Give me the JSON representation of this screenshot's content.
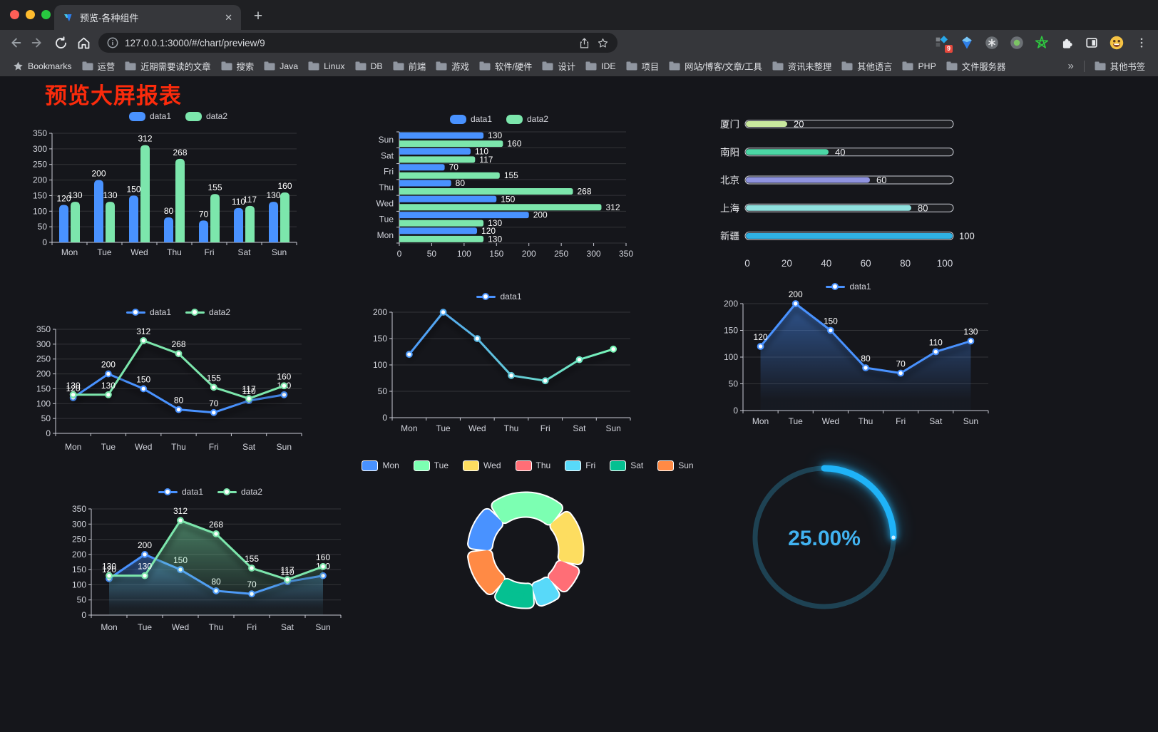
{
  "browser": {
    "tab_title": "预览-各种组件",
    "close_glyph": "✕",
    "newtab_glyph": "+",
    "url": "127.0.0.1:3000/#/chart/preview/9",
    "extension_badge": "9",
    "bookmarks_label": "Bookmarks",
    "bookmarks": [
      "运营",
      "近期需要读的文章",
      "搜索",
      "Java",
      "Linux",
      "DB",
      "前端",
      "游戏",
      "软件/硬件",
      "设计",
      "IDE",
      "项目",
      "网站/博客/文章/工具",
      "资讯未整理",
      "其他语言",
      "PHP",
      "文件服务器"
    ],
    "overflow_glyph": "»",
    "other_bookmarks": "其他书签"
  },
  "page": {
    "title": "预览大屏报表"
  },
  "colors": {
    "axis": "#c9cbd4",
    "grid": "rgba(255,255,255,0.13)",
    "tick_text": "#d2d4dc",
    "value_label": "#ffffff",
    "title_red": "#fb2b0c",
    "gauge_text": "#41b2f0"
  },
  "chart_data": [
    {
      "id": "bar-vertical",
      "type": "bar",
      "categories": [
        "Mon",
        "Tue",
        "Wed",
        "Thu",
        "Fri",
        "Sat",
        "Sun"
      ],
      "series": [
        {
          "name": "data1",
          "color": "#4992ff",
          "values": [
            120,
            200,
            150,
            80,
            70,
            110,
            130
          ]
        },
        {
          "name": "data2",
          "color": "#7ce6ac",
          "values": [
            130,
            130,
            312,
            268,
            155,
            117,
            160
          ]
        }
      ],
      "ylim": [
        0,
        350
      ],
      "yticks": [
        0,
        50,
        100,
        150,
        200,
        250,
        300,
        350
      ],
      "legend": [
        "data1",
        "data2"
      ],
      "value_labels": true
    },
    {
      "id": "bar-horizontal",
      "type": "barh",
      "categories": [
        "Mon",
        "Tue",
        "Wed",
        "Thu",
        "Fri",
        "Sat",
        "Sun"
      ],
      "series": [
        {
          "name": "data1",
          "color": "#4992ff",
          "values": [
            120,
            200,
            150,
            80,
            70,
            110,
            130
          ]
        },
        {
          "name": "data2",
          "color": "#7ce6ac",
          "values": [
            130,
            130,
            312,
            268,
            155,
            117,
            160
          ]
        }
      ],
      "xlim": [
        0,
        350
      ],
      "xticks": [
        0,
        50,
        100,
        150,
        200,
        250,
        300,
        350
      ],
      "legend": [
        "data1",
        "data2"
      ],
      "value_labels": true
    },
    {
      "id": "progress-bars",
      "type": "progress",
      "items": [
        {
          "label": "厦门",
          "value": 20,
          "color": "#c9e89e"
        },
        {
          "label": "南阳",
          "value": 40,
          "color": "#4bd6a5"
        },
        {
          "label": "北京",
          "value": 60,
          "color": "#8f93e0"
        },
        {
          "label": "上海",
          "value": 80,
          "color": "#8fe0de"
        },
        {
          "label": "新疆",
          "value": 100,
          "color": "#2fb1e3"
        }
      ],
      "xlim": [
        0,
        100
      ],
      "xticks": [
        0,
        20,
        40,
        60,
        80,
        100
      ]
    },
    {
      "id": "line-two-series",
      "type": "line",
      "categories": [
        "Mon",
        "Tue",
        "Wed",
        "Thu",
        "Fri",
        "Sat",
        "Sun"
      ],
      "series": [
        {
          "name": "data1",
          "color": "#4992ff",
          "values": [
            120,
            200,
            150,
            80,
            70,
            110,
            130
          ]
        },
        {
          "name": "data2",
          "color": "#7ce6ac",
          "values": [
            130,
            130,
            312,
            268,
            155,
            117,
            160
          ]
        }
      ],
      "ylim": [
        0,
        350
      ],
      "yticks": [
        0,
        50,
        100,
        150,
        200,
        250,
        300,
        350
      ],
      "legend": [
        "data1",
        "data2"
      ],
      "labels": true,
      "area": false,
      "gradient": false
    },
    {
      "id": "line-gradient",
      "type": "line",
      "categories": [
        "Mon",
        "Tue",
        "Wed",
        "Thu",
        "Fri",
        "Sat",
        "Sun"
      ],
      "series": [
        {
          "name": "data1",
          "color": "#4992ff",
          "color2": "#7cffb2",
          "values": [
            120,
            200,
            150,
            80,
            70,
            110,
            130
          ]
        }
      ],
      "ylim": [
        0,
        200
      ],
      "yticks": [
        0,
        50,
        100,
        150,
        200
      ],
      "legend": [
        "data1"
      ],
      "labels": false,
      "area": false,
      "gradient": true
    },
    {
      "id": "line-area",
      "type": "line",
      "categories": [
        "Mon",
        "Tue",
        "Wed",
        "Thu",
        "Fri",
        "Sat",
        "Sun"
      ],
      "series": [
        {
          "name": "data1",
          "color": "#4992ff",
          "values": [
            120,
            200,
            150,
            80,
            70,
            110,
            130
          ]
        }
      ],
      "ylim": [
        0,
        200
      ],
      "yticks": [
        0,
        50,
        100,
        150,
        200
      ],
      "legend": [
        "data1"
      ],
      "labels": true,
      "area": true,
      "gradient": false
    },
    {
      "id": "line-area-two-series",
      "type": "line",
      "categories": [
        "Mon",
        "Tue",
        "Wed",
        "Thu",
        "Fri",
        "Sat",
        "Sun"
      ],
      "series": [
        {
          "name": "data1",
          "color": "#4992ff",
          "values": [
            120,
            200,
            150,
            80,
            70,
            110,
            130
          ]
        },
        {
          "name": "data2",
          "color": "#7ce6ac",
          "values": [
            130,
            130,
            312,
            268,
            155,
            117,
            160
          ]
        }
      ],
      "ylim": [
        0,
        350
      ],
      "yticks": [
        0,
        50,
        100,
        150,
        200,
        250,
        300,
        350
      ],
      "legend": [
        "data1",
        "data2"
      ],
      "labels": true,
      "area": true,
      "gradient": false
    },
    {
      "id": "donut",
      "type": "donut",
      "legend": [
        "Mon",
        "Tue",
        "Wed",
        "Thu",
        "Fri",
        "Sat",
        "Sun"
      ],
      "values": [
        120,
        200,
        150,
        80,
        70,
        110,
        130
      ],
      "colors": [
        "#4992ff",
        "#7cffb2",
        "#fddd60",
        "#ff6e76",
        "#58d9f9",
        "#05c091",
        "#ff8a45"
      ]
    },
    {
      "id": "gauge",
      "type": "gauge",
      "value": 25,
      "max": 100,
      "label": "25.00%",
      "color": "#1fb3f8",
      "track_color": "#1e4253"
    }
  ]
}
